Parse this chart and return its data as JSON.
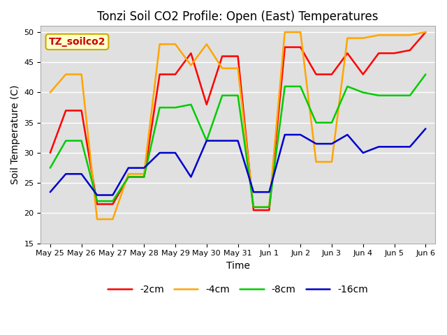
{
  "title": "Tonzi Soil CO2 Profile: Open (East) Temperatures",
  "xlabel": "Time",
  "ylabel": "Soil Temperature (C)",
  "ylim": [
    15,
    51
  ],
  "yticks": [
    15,
    20,
    25,
    30,
    35,
    40,
    45,
    50
  ],
  "x_labels": [
    "May 25",
    "May 26",
    "May 27",
    "May 28",
    "May 29",
    "May 30",
    "May 31",
    "Jun 1",
    "Jun 2",
    "Jun 3",
    "Jun 4",
    "Jun 5",
    "Jun 6"
  ],
  "n_labels": 13,
  "series": {
    "-2cm": {
      "color": "#ff0000",
      "x": [
        0,
        0.5,
        1.0,
        1.5,
        2.0,
        2.5,
        3.0,
        3.5,
        4.0,
        4.5,
        5.0,
        5.5,
        6.0,
        6.5,
        7.0,
        7.5,
        8.0,
        8.5,
        9.0,
        9.5,
        10.0,
        10.5,
        11.0,
        11.5,
        12.0
      ],
      "values": [
        30.0,
        37.0,
        37.0,
        21.5,
        21.5,
        26.0,
        26.0,
        43.0,
        43.0,
        46.5,
        38.0,
        46.0,
        46.0,
        20.5,
        20.5,
        47.5,
        47.5,
        43.0,
        43.0,
        46.5,
        43.0,
        46.5,
        46.5,
        47.0,
        50.0
      ]
    },
    "-4cm": {
      "color": "#ffa500",
      "x": [
        0,
        0.5,
        1.0,
        1.5,
        2.0,
        2.5,
        3.0,
        3.5,
        4.0,
        4.5,
        5.0,
        5.5,
        6.0,
        6.5,
        7.0,
        7.5,
        8.0,
        8.5,
        9.0,
        9.5,
        10.0,
        10.5,
        11.0,
        11.5,
        12.0
      ],
      "values": [
        40.0,
        43.0,
        43.0,
        19.0,
        19.0,
        26.5,
        26.5,
        48.0,
        48.0,
        44.5,
        48.0,
        44.0,
        44.0,
        21.0,
        21.0,
        50.0,
        50.0,
        28.5,
        28.5,
        49.0,
        49.0,
        49.5,
        49.5,
        49.5,
        50.0
      ]
    },
    "-8cm": {
      "color": "#00cc00",
      "x": [
        0,
        0.5,
        1.0,
        1.5,
        2.0,
        2.5,
        3.0,
        3.5,
        4.0,
        4.5,
        5.0,
        5.5,
        6.0,
        6.5,
        7.0,
        7.5,
        8.0,
        8.5,
        9.0,
        9.5,
        10.0,
        10.5,
        11.0,
        11.5,
        12.0
      ],
      "values": [
        27.5,
        32.0,
        32.0,
        22.0,
        22.0,
        26.0,
        26.0,
        37.5,
        37.5,
        38.0,
        32.0,
        39.5,
        39.5,
        21.0,
        21.0,
        41.0,
        41.0,
        35.0,
        35.0,
        41.0,
        40.0,
        39.5,
        39.5,
        39.5,
        43.0
      ]
    },
    "-16cm": {
      "color": "#0000cc",
      "x": [
        0,
        0.5,
        1.0,
        1.5,
        2.0,
        2.5,
        3.0,
        3.5,
        4.0,
        4.5,
        5.0,
        5.5,
        6.0,
        6.5,
        7.0,
        7.5,
        8.0,
        8.5,
        9.0,
        9.5,
        10.0,
        10.5,
        11.0,
        11.5,
        12.0
      ],
      "values": [
        23.5,
        26.5,
        26.5,
        23.0,
        23.0,
        27.5,
        27.5,
        30.0,
        30.0,
        26.0,
        32.0,
        32.0,
        32.0,
        23.5,
        23.5,
        33.0,
        33.0,
        31.5,
        31.5,
        33.0,
        30.0,
        31.0,
        31.0,
        31.0,
        34.0
      ]
    }
  },
  "annotation_text": "TZ_soilco2",
  "annotation_color": "#cc0000",
  "annotation_box_color": "#ffffcc",
  "annotation_edge_color": "#ccaa00",
  "plot_bg_color": "#e0e0e0",
  "fig_bg_color": "#ffffff",
  "title_fontsize": 12,
  "axis_label_fontsize": 10,
  "tick_fontsize": 8,
  "legend_fontsize": 10,
  "linewidth": 1.8
}
